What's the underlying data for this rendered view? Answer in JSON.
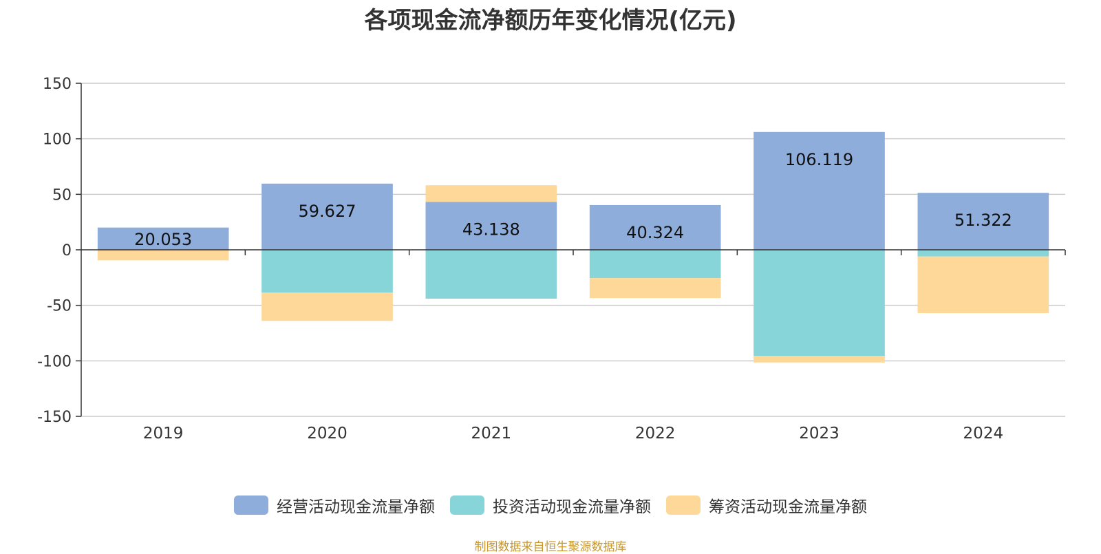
{
  "chart_data": {
    "type": "bar",
    "stacked": true,
    "title": "各项现金流净额历年变化情况(亿元)",
    "categories": [
      "2019",
      "2020",
      "2021",
      "2022",
      "2023",
      "2024"
    ],
    "ylim": [
      -150,
      150
    ],
    "yticks": [
      150,
      100,
      50,
      0,
      -50,
      -100,
      -150
    ],
    "grid": true,
    "legend_position": "bottom",
    "series": [
      {
        "name": "经营活动现金流量净额",
        "color": "#8EADDB",
        "values": [
          20.053,
          59.627,
          43.138,
          40.324,
          106.119,
          51.322
        ]
      },
      {
        "name": "投资活动现金流量净额",
        "color": "#87D5D8",
        "values": [
          0,
          -38.5,
          -44,
          -25.5,
          -95.5,
          -6
        ]
      },
      {
        "name": "筹资活动现金流量净额",
        "color": "#FDD898",
        "values": [
          -9.5,
          -25.5,
          15,
          -18,
          -6,
          -51
        ]
      }
    ],
    "data_labels": [
      "20.053",
      "59.627",
      "43.138",
      "40.324",
      "106.119",
      "51.322"
    ]
  },
  "footer": {
    "source": "制图数据来自恒生聚源数据库"
  }
}
